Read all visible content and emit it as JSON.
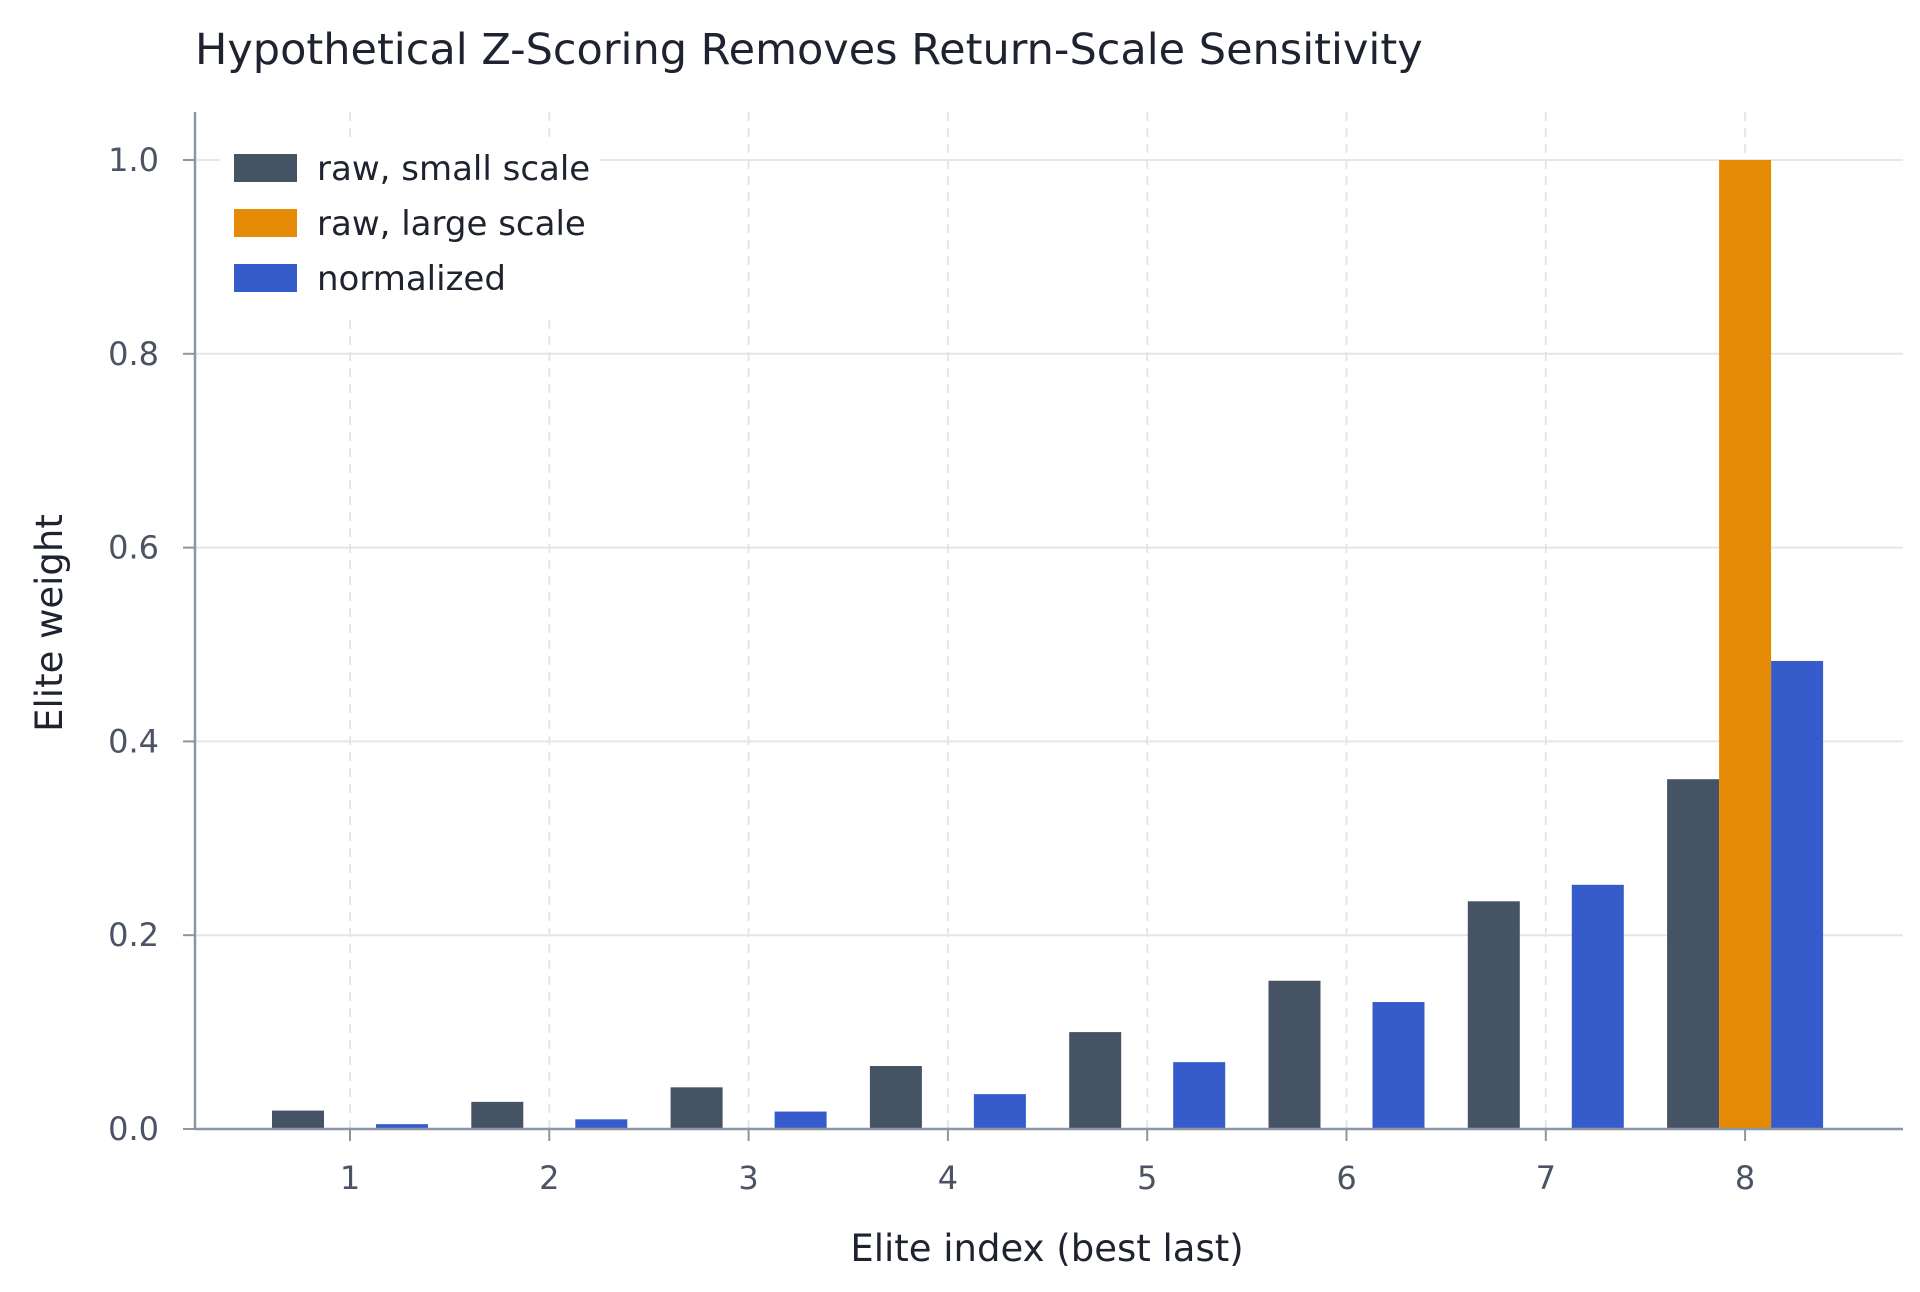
{
  "chart_data": {
    "type": "bar",
    "title": "Hypothetical Z-Scoring Removes Return-Scale Sensitivity",
    "xlabel": "Elite index (best last)",
    "ylabel": "Elite weight",
    "categories": [
      "1",
      "2",
      "3",
      "4",
      "5",
      "6",
      "7",
      "8"
    ],
    "ylim": [
      0,
      1.05
    ],
    "yticks": [
      "0.0",
      "0.2",
      "0.4",
      "0.6",
      "0.8",
      "1.0"
    ],
    "grid": true,
    "legend_position": "top-left",
    "series": [
      {
        "name": "raw, small scale",
        "color": "#465365",
        "values": [
          0.019,
          0.028,
          0.043,
          0.065,
          0.1,
          0.153,
          0.235,
          0.361
        ]
      },
      {
        "name": "raw, large scale",
        "color": "#e58a04",
        "values": [
          0,
          0,
          0,
          0,
          0,
          0,
          0,
          1.0
        ]
      },
      {
        "name": "normalized",
        "color": "#365bcb",
        "values": [
          0.005,
          0.01,
          0.018,
          0.036,
          0.069,
          0.131,
          0.252,
          0.483
        ]
      }
    ]
  }
}
